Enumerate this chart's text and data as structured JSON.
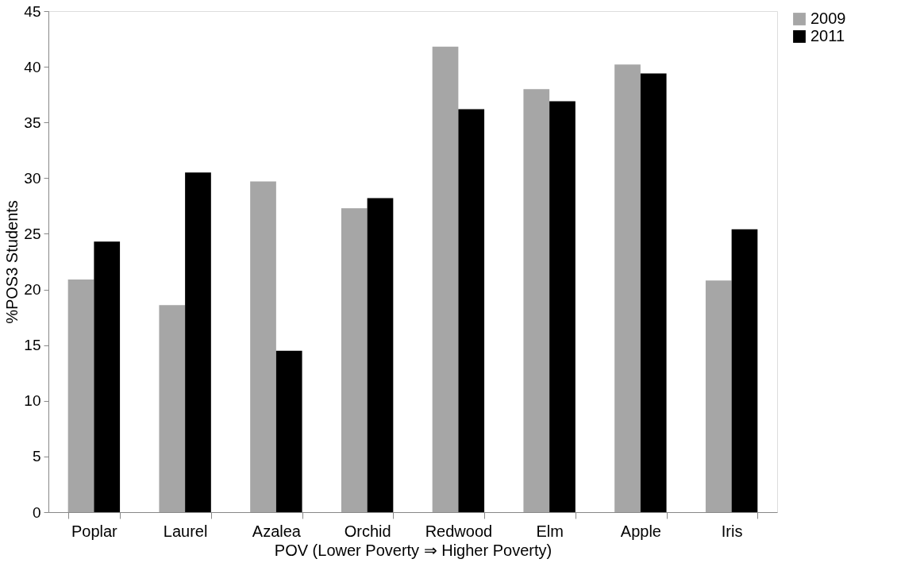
{
  "chart_data": {
    "type": "bar",
    "xlabel": "POV (Lower Poverty ⇒ Higher Poverty)",
    "ylabel": "%POS3 Students",
    "categories": [
      "Poplar",
      "Laurel",
      "Azalea",
      "Orchid",
      "Redwood",
      "Elm",
      "Apple",
      "Iris"
    ],
    "series": [
      {
        "name": "2009",
        "color": "#a6a6a6",
        "values": [
          20.9,
          18.6,
          29.7,
          27.3,
          41.8,
          38.0,
          40.2,
          20.8
        ]
      },
      {
        "name": "2011",
        "color": "#000000",
        "values": [
          24.3,
          30.5,
          14.5,
          28.2,
          36.2,
          36.9,
          39.4,
          25.4
        ]
      }
    ],
    "ylim": [
      0,
      45
    ],
    "yticks": [
      0,
      5,
      10,
      15,
      20,
      25,
      30,
      35,
      40,
      45
    ],
    "grid": false,
    "legend": "right"
  }
}
